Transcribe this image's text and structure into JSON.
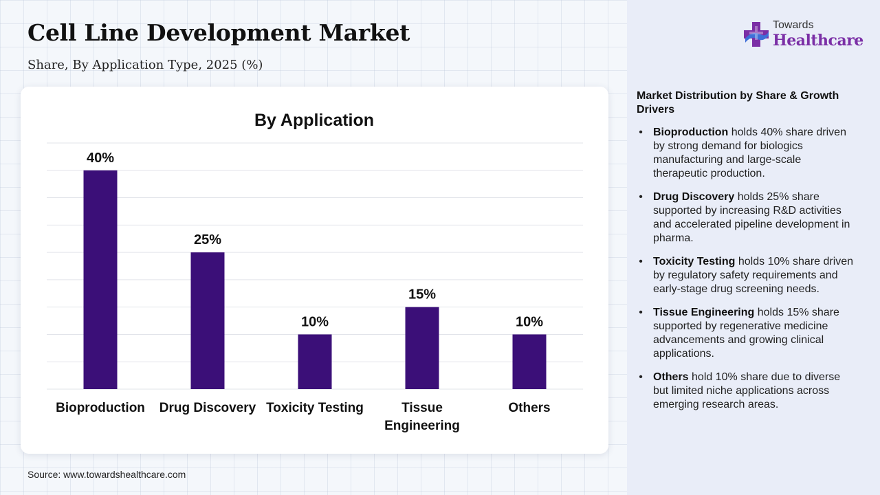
{
  "header": {
    "title": "Cell Line Development Market",
    "subtitle": "Share, By Application Type, 2025 (%)"
  },
  "logo": {
    "line1": "Towards",
    "line2": "Healthcare",
    "icon": "cross-icon",
    "colors": {
      "primary": "#7b2fa6",
      "secondary": "#3f6fd8"
    }
  },
  "chart_data": {
    "type": "bar",
    "title": "By Application",
    "categories": [
      "Bioproduction",
      "Drug Discovery",
      "Toxicity Testing",
      "Tissue Engineering",
      "Others"
    ],
    "category_lines": [
      [
        "Bioproduction"
      ],
      [
        "Drug Discovery"
      ],
      [
        "Toxicity Testing"
      ],
      [
        "Tissue",
        "Engineering"
      ],
      [
        "Others"
      ]
    ],
    "values": [
      40,
      25,
      10,
      15,
      10
    ],
    "value_labels": [
      "40%",
      "25%",
      "10%",
      "15%",
      "10%"
    ],
    "ylim": [
      0,
      45
    ],
    "grid": true,
    "bar_color": "#3b0f78"
  },
  "panel": {
    "heading": "Market Distribution by Share & Growth Drivers",
    "bullet_char": "•",
    "items": [
      {
        "name": "Bioproduction",
        "text": " holds 40% share driven by strong demand for biologics manufacturing and large-scale therapeutic production."
      },
      {
        "name": "Drug Discovery",
        "text": " holds 25% share supported by increasing R&D activities and accelerated pipeline development in pharma."
      },
      {
        "name": "Toxicity Testing",
        "text": " holds 10% share driven by regulatory safety requirements and early-stage drug screening needs."
      },
      {
        "name": "Tissue Engineering",
        "text": " holds 15% share supported by regenerative medicine advancements and growing clinical applications."
      },
      {
        "name": "Others",
        "text": " hold 10% share due to diverse but limited niche applications across emerging research areas."
      }
    ]
  },
  "footer": {
    "source": "Source: www.towardshealthcare.com"
  }
}
